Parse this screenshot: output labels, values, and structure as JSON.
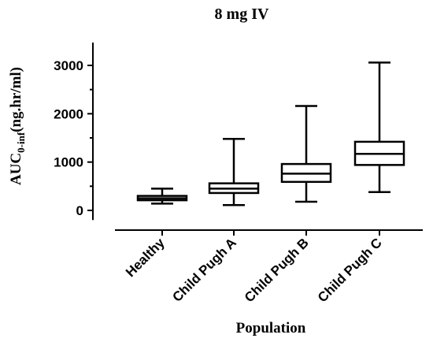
{
  "chart_data": {
    "type": "box",
    "title": "8 mg IV",
    "xlabel": "Population",
    "ylabel": {
      "main": "AUC",
      "subscript": "0-inf",
      "unit": "(ng.hr/ml)"
    },
    "ylim": [
      -200,
      3400
    ],
    "yticks": [
      0,
      1000,
      2000,
      3000
    ],
    "grid": false,
    "categories": [
      "Healthy",
      "Child Pugh A",
      "Child Pugh B",
      "Child Pugh C"
    ],
    "boxes": [
      {
        "category": "Healthy",
        "min": 140,
        "q1": 210,
        "median": 250,
        "q3": 300,
        "max": 450
      },
      {
        "category": "Child Pugh A",
        "min": 110,
        "q1": 360,
        "median": 450,
        "q3": 560,
        "max": 1480
      },
      {
        "category": "Child Pugh B",
        "min": 180,
        "q1": 590,
        "median": 760,
        "q3": 960,
        "max": 2160
      },
      {
        "category": "Child Pugh C",
        "min": 380,
        "q1": 940,
        "median": 1170,
        "q3": 1420,
        "max": 3060
      }
    ]
  }
}
